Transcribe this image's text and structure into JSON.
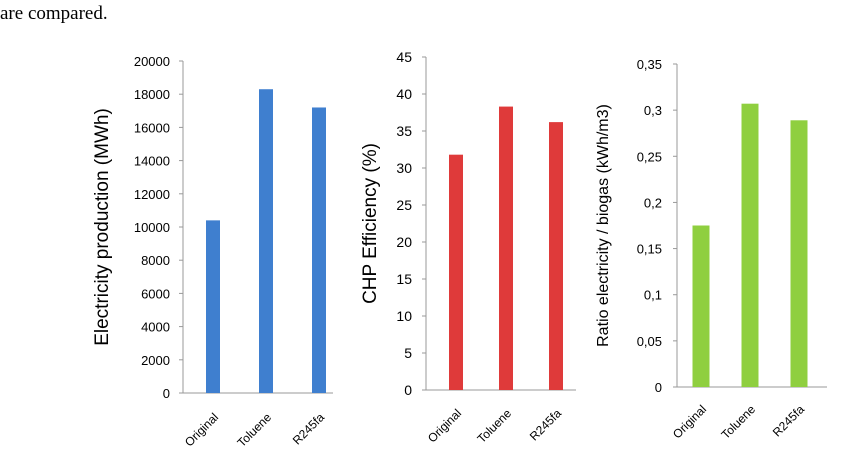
{
  "snippet_text": "are compared.",
  "chart_data": [
    {
      "type": "bar",
      "categories": [
        "Original",
        "Toluene",
        "R245fa"
      ],
      "values": [
        10400,
        18300,
        17200
      ],
      "ylabel": "Electricity production (MWh)",
      "ylim": [
        0,
        20000
      ],
      "yticks": [
        "0",
        "2000",
        "4000",
        "6000",
        "8000",
        "10000",
        "12000",
        "14000",
        "16000",
        "18000",
        "20000"
      ],
      "color": "#3f7fcf",
      "grid": false
    },
    {
      "type": "bar",
      "categories": [
        "Original",
        "Toluene",
        "R245fa"
      ],
      "values": [
        31.8,
        38.3,
        36.2
      ],
      "ylabel": "CHP Efficiency (%)",
      "ylim": [
        0,
        45
      ],
      "yticks": [
        "0",
        "5",
        "10",
        "15",
        "20",
        "25",
        "30",
        "35",
        "40",
        "45"
      ],
      "color": "#df3a3a",
      "grid": false
    },
    {
      "type": "bar",
      "categories": [
        "Original",
        "Toluene",
        "R245fa"
      ],
      "values": [
        0.175,
        0.307,
        0.289
      ],
      "ylabel": "Ratio electricity / biogas  (kWh/m3)",
      "ylim": [
        0,
        0.35
      ],
      "yticks": [
        "0",
        "0,05",
        "0,1",
        "0,15",
        "0,2",
        "0,25",
        "0,3",
        "0,35"
      ],
      "color": "#8fcf3f",
      "grid": false
    }
  ]
}
